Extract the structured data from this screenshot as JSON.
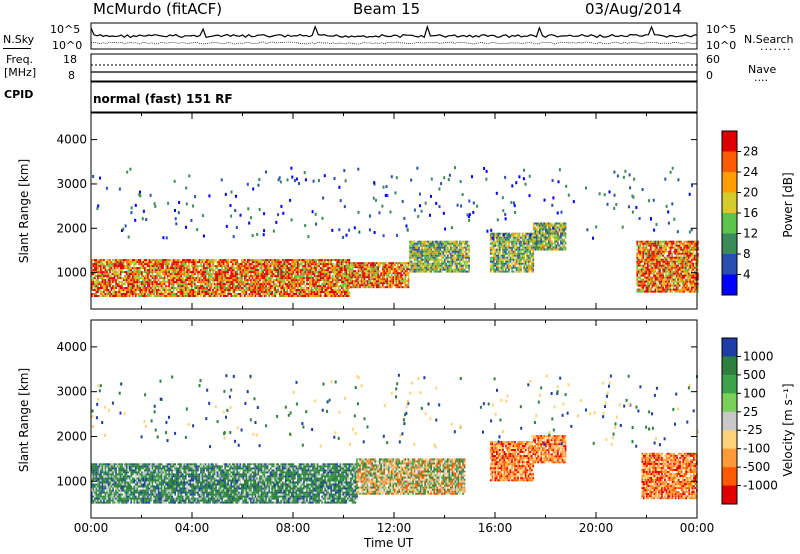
{
  "header": {
    "station": "McMurdo (fitACF)",
    "beam": "Beam 15",
    "date": "03/Aug/2014"
  },
  "panels": {
    "nsky": {
      "label": "N.Sky",
      "right_label": "N.Search",
      "ticks_left": [
        "10^5",
        "10^0"
      ],
      "ticks_right": [
        "10^5",
        "10^0"
      ]
    },
    "freq": {
      "label_line1": "Freq.",
      "label_line2": "[MHz]",
      "right_label": "Nave",
      "ticks_left": [
        "18",
        "8"
      ],
      "ticks_right": [
        "60",
        "0"
      ]
    },
    "cpid": {
      "label": "CPID",
      "text": "normal (fast) 151 RF"
    }
  },
  "chart_data": [
    {
      "type": "heatmap",
      "title": "Power",
      "ylabel": "Slant Range [km]",
      "xlabel": "",
      "ylim": [
        180,
        4600
      ],
      "y_ticks": [
        "4000",
        "3000",
        "2000",
        "1000"
      ],
      "colorbar": {
        "label": "Power [dB]",
        "ticks": [
          "28",
          "24",
          "20",
          "16",
          "12",
          "8",
          "4"
        ],
        "colors": [
          "#e00000",
          "#ff5a00",
          "#ff9d00",
          "#d4cc2a",
          "#5cc44a",
          "#3b8a5a",
          "#2a4fb0",
          "#0000ff"
        ]
      },
      "regions": [
        {
          "t0": 0.0,
          "t1": 10.2,
          "r0": 450,
          "r1": 1300,
          "level": "high"
        },
        {
          "t0": 10.2,
          "t1": 12.6,
          "r0": 650,
          "r1": 1200,
          "level": "high"
        },
        {
          "t0": 12.6,
          "t1": 15.0,
          "r0": 1000,
          "r1": 1700,
          "level": "medium"
        },
        {
          "t0": 15.8,
          "t1": 17.5,
          "r0": 1000,
          "r1": 1900,
          "level": "medium"
        },
        {
          "t0": 17.5,
          "t1": 18.8,
          "r0": 1500,
          "r1": 2100,
          "level": "medium"
        },
        {
          "t0": 21.6,
          "t1": 24.0,
          "r0": 550,
          "r1": 1700,
          "level": "high"
        }
      ]
    },
    {
      "type": "heatmap",
      "title": "Velocity",
      "ylabel": "Slant Range [km]",
      "xlabel": "Time UT",
      "ylim": [
        180,
        4600
      ],
      "y_ticks": [
        "4000",
        "3000",
        "2000",
        "1000"
      ],
      "x_ticks": [
        "00:00",
        "04:00",
        "08:00",
        "12:00",
        "16:00",
        "20:00",
        "00:00"
      ],
      "colorbar": {
        "label": "Velocity [m s⁻¹]",
        "ticks": [
          "1000",
          "500",
          "100",
          "25",
          "-25",
          "-100",
          "-500",
          "-1000"
        ],
        "colors": [
          "#1e3ca8",
          "#2e7f3f",
          "#3da34a",
          "#7ad15a",
          "#c8c8c8",
          "#ffd27a",
          "#ff9a3a",
          "#ff5a00",
          "#e00000"
        ]
      },
      "regions": [
        {
          "t0": 0.0,
          "t1": 10.5,
          "r0": 500,
          "r1": 1400,
          "level": "green"
        },
        {
          "t0": 10.5,
          "t1": 14.8,
          "r0": 700,
          "r1": 1500,
          "level": "mixed"
        },
        {
          "t0": 15.8,
          "t1": 17.5,
          "r0": 1000,
          "r1": 1900,
          "level": "orange"
        },
        {
          "t0": 17.5,
          "t1": 18.8,
          "r0": 1400,
          "r1": 2000,
          "level": "orange"
        },
        {
          "t0": 21.8,
          "t1": 24.0,
          "r0": 600,
          "r1": 1600,
          "level": "orange"
        }
      ]
    }
  ]
}
